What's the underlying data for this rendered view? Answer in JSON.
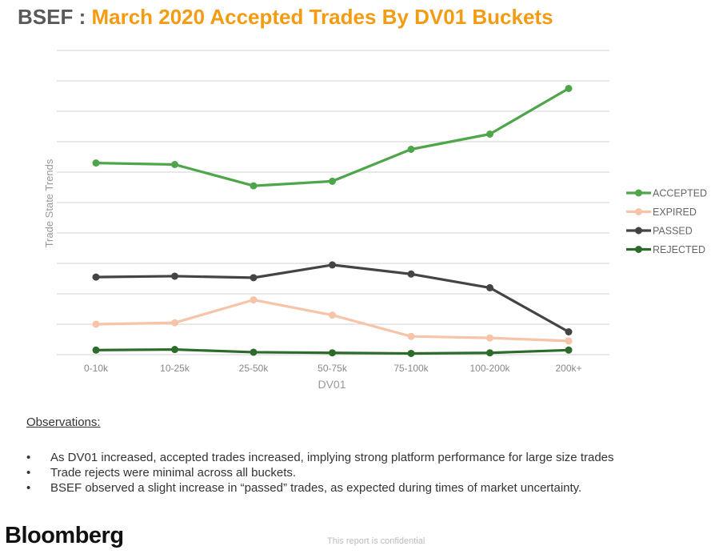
{
  "header": {
    "brand": "BSEF",
    "separator": " : ",
    "subject": "March 2020 Accepted Trades By DV01 Buckets",
    "brand_color": "#595959",
    "subject_color": "#f39c12"
  },
  "chart_data": {
    "type": "line",
    "categories": [
      "0-10k",
      "10-25k",
      "25-50k",
      "50-75k",
      "75-100k",
      "100-200k",
      "200k+"
    ],
    "xlabel": "DV01",
    "ylabel": "Trade State Trends",
    "ylim": [
      0,
      100
    ],
    "y_tick_labels_shown": false,
    "grid": true,
    "legend_position": "right",
    "series": [
      {
        "name": "ACCEPTED",
        "color": "#4fa64a",
        "values": [
          63,
          62.5,
          55.5,
          57,
          67.5,
          72.5,
          87.5
        ]
      },
      {
        "name": "EXPIRED",
        "color": "#f7c4a8",
        "values": [
          10,
          10.5,
          18,
          13,
          6,
          5.5,
          4.5
        ]
      },
      {
        "name": "PASSED",
        "color": "#444444",
        "values": [
          25.5,
          25.8,
          25.3,
          29.5,
          26.5,
          22,
          7.5
        ]
      },
      {
        "name": "REJECTED",
        "color": "#2d6b2a",
        "values": [
          1.5,
          1.7,
          0.8,
          0.6,
          0.4,
          0.6,
          1.5
        ]
      }
    ]
  },
  "observations": {
    "heading": "Observations:",
    "items": [
      "As DV01 increased, accepted trades increased, implying strong platform performance for large size trades",
      "Trade rejects were minimal across all buckets.",
      "BSEF observed a slight increase in “passed” trades, as expected during times of market uncertainty."
    ]
  },
  "footer": {
    "logo": "Bloomberg",
    "confidential": "This report is confidential"
  }
}
